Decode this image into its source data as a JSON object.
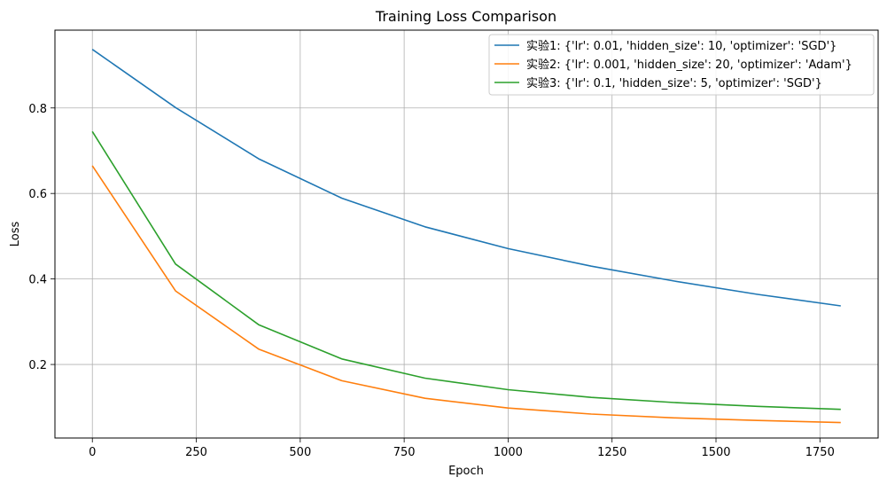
{
  "chart_data": {
    "type": "line",
    "title": "Training Loss Comparison",
    "xlabel": "Epoch",
    "ylabel": "Loss",
    "xlim": [
      -90,
      1890
    ],
    "ylim": [
      0.028,
      0.982
    ],
    "xticks": [
      0,
      250,
      500,
      750,
      1000,
      1250,
      1500,
      1750
    ],
    "yticks": [
      0.2,
      0.4,
      0.6,
      0.8
    ],
    "ytick_labels": [
      "0.2",
      "0.4",
      "0.6",
      "0.8"
    ],
    "grid": true,
    "legend_position": "top-right",
    "x": [
      0,
      200,
      400,
      600,
      800,
      1000,
      1200,
      1400,
      1600,
      1800
    ],
    "series": [
      {
        "name": "实验1: {'lr': 0.01, 'hidden_size': 10, 'optimizer': 'SGD'}",
        "color": "#1f77b4",
        "values": [
          0.937,
          0.801,
          0.681,
          0.589,
          0.522,
          0.471,
          0.43,
          0.395,
          0.364,
          0.337
        ]
      },
      {
        "name": "实验2: {'lr': 0.001, 'hidden_size': 20, 'optimizer': 'Adam'}",
        "color": "#ff7f0e",
        "values": [
          0.665,
          0.372,
          0.236,
          0.162,
          0.121,
          0.098,
          0.084,
          0.075,
          0.069,
          0.064
        ]
      },
      {
        "name": "实验3: {'lr': 0.1, 'hidden_size': 5, 'optimizer': 'SGD'}",
        "color": "#2ca02c",
        "values": [
          0.745,
          0.435,
          0.293,
          0.213,
          0.168,
          0.141,
          0.123,
          0.111,
          0.102,
          0.095
        ]
      }
    ]
  }
}
